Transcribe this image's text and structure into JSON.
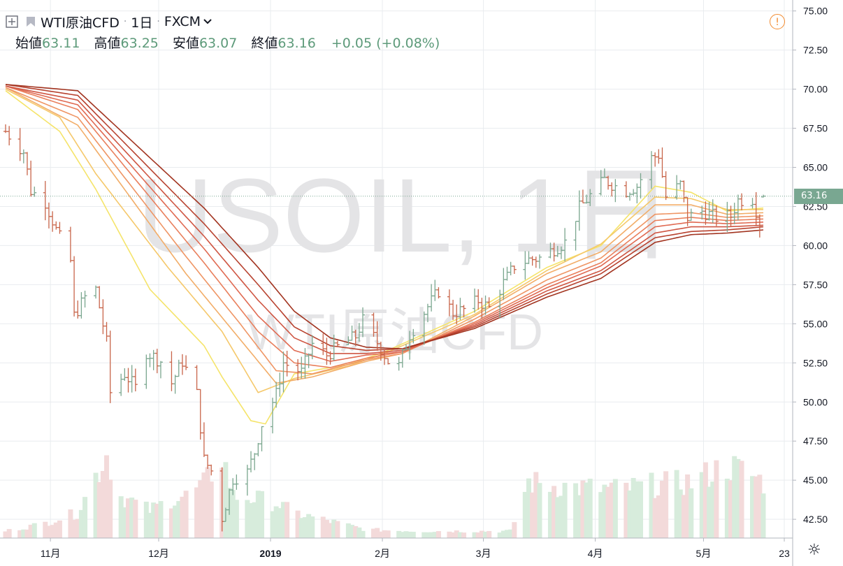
{
  "header": {
    "symbol": "WTI原油CFD",
    "interval": "1日",
    "exchange": "FXCM",
    "dot": "·"
  },
  "ohlc": {
    "open_label": "始値",
    "open": "63.11",
    "high_label": "高値",
    "high": "63.25",
    "low_label": "安値",
    "low": "63.07",
    "close_label": "終値",
    "close": "63.16",
    "change": "+0.05 (+0.08%)"
  },
  "watermark": {
    "main": "USOIL, 1日",
    "sub": "WTI原油CFD"
  },
  "current_price_label": "63.16",
  "alert_symbol": "!",
  "colors": {
    "up": "#7aa68e",
    "down": "#c8654a",
    "vol_up": "#d7ecdc",
    "vol_down": "#f3dada",
    "ribbon": [
      "#f5e46a",
      "#f5c86a",
      "#f2ad68",
      "#ef9564",
      "#e97f5c",
      "#e06a52",
      "#cf5643",
      "#b84330",
      "#a23420"
    ],
    "price_line": "#79a791",
    "grid": "#e9ecef"
  },
  "chart_data": {
    "type": "candlestick",
    "title": "USOIL, 1日",
    "y_axis": {
      "ylim": [
        41.3,
        75.7
      ],
      "ticks": [
        "75.00",
        "72.50",
        "70.00",
        "67.50",
        "65.00",
        "62.50",
        "60.00",
        "57.50",
        "55.00",
        "52.50",
        "50.00",
        "47.50",
        "45.00",
        "42.50"
      ]
    },
    "x_axis": {
      "range": [
        "2018-10-25",
        "2019-05-23"
      ],
      "ticks": [
        {
          "date": "2018-11-01",
          "label": "11月"
        },
        {
          "date": "2018-12-01",
          "label": "12月"
        },
        {
          "date": "2019-01-01",
          "label": "2019"
        },
        {
          "date": "2019-02-01",
          "label": "2月"
        },
        {
          "date": "2019-03-01",
          "label": "3月"
        },
        {
          "date": "2019-04-01",
          "label": "4月"
        },
        {
          "date": "2019-05-01",
          "label": "5月"
        },
        {
          "date": "2019-05-23",
          "label": "23"
        }
      ]
    },
    "close_anchors": [
      [
        "2018-10-25",
        67.3
      ],
      [
        "2018-10-30",
        66.0
      ],
      [
        "2018-11-01",
        63.5
      ],
      [
        "2018-11-05",
        62.8
      ],
      [
        "2018-11-08",
        61.0
      ],
      [
        "2018-11-12",
        59.0
      ],
      [
        "2018-11-13",
        55.5
      ],
      [
        "2018-11-16",
        56.7
      ],
      [
        "2018-11-19",
        57.2
      ],
      [
        "2018-11-22",
        53.8
      ],
      [
        "2018-11-23",
        50.6
      ],
      [
        "2018-11-27",
        51.8
      ],
      [
        "2018-11-30",
        50.9
      ],
      [
        "2018-12-03",
        53.2
      ],
      [
        "2018-12-07",
        52.6
      ],
      [
        "2018-12-10",
        51.2
      ],
      [
        "2018-12-13",
        52.6
      ],
      [
        "2018-12-17",
        50.5
      ],
      [
        "2018-12-19",
        46.3
      ],
      [
        "2018-12-21",
        45.6
      ],
      [
        "2018-12-24",
        42.6
      ],
      [
        "2018-12-27",
        45.1
      ],
      [
        "2018-12-31",
        45.5
      ],
      [
        "2019-01-02",
        46.8
      ],
      [
        "2019-01-04",
        48.6
      ],
      [
        "2019-01-08",
        50.5
      ],
      [
        "2019-01-10",
        52.5
      ],
      [
        "2019-01-15",
        51.9
      ],
      [
        "2019-01-18",
        53.7
      ],
      [
        "2019-01-22",
        53.0
      ],
      [
        "2019-01-25",
        53.5
      ],
      [
        "2019-01-30",
        54.2
      ],
      [
        "2019-02-01",
        55.2
      ],
      [
        "2019-02-05",
        53.8
      ],
      [
        "2019-02-08",
        52.6
      ],
      [
        "2019-02-11",
        52.3
      ],
      [
        "2019-02-14",
        54.3
      ],
      [
        "2019-02-19",
        56.1
      ],
      [
        "2019-02-22",
        57.1
      ],
      [
        "2019-02-26",
        55.7
      ],
      [
        "2019-03-01",
        55.9
      ],
      [
        "2019-03-05",
        56.5
      ],
      [
        "2019-03-08",
        56.0
      ],
      [
        "2019-03-12",
        57.6
      ],
      [
        "2019-03-15",
        58.7
      ],
      [
        "2019-03-19",
        59.1
      ],
      [
        "2019-03-22",
        59.2
      ],
      [
        "2019-03-26",
        59.8
      ],
      [
        "2019-03-29",
        60.2
      ],
      [
        "2019-04-02",
        62.4
      ],
      [
        "2019-04-05",
        63.2
      ],
      [
        "2019-04-09",
        64.2
      ],
      [
        "2019-04-12",
        63.8
      ],
      [
        "2019-04-15",
        63.5
      ],
      [
        "2019-04-18",
        63.8
      ],
      [
        "2019-04-22",
        65.6
      ],
      [
        "2019-04-24",
        65.8
      ],
      [
        "2019-04-26",
        63.1
      ],
      [
        "2019-04-30",
        63.9
      ],
      [
        "2019-05-02",
        61.8
      ],
      [
        "2019-05-06",
        62.2
      ],
      [
        "2019-05-10",
        61.8
      ],
      [
        "2019-05-14",
        61.9
      ],
      [
        "2019-05-16",
        62.9
      ],
      [
        "2019-05-20",
        63.0
      ],
      [
        "2019-05-22",
        61.5
      ],
      [
        "2019-05-23",
        63.16
      ]
    ],
    "ema_ribbon": {
      "series": [
        {
          "values": [
            [
              0,
              69.9
            ],
            [
              15,
              67.3
            ],
            [
              25,
              63.6
            ],
            [
              40,
              57.2
            ],
            [
              55,
              53.6
            ],
            [
              60,
              51.6
            ],
            [
              68,
              48.8
            ],
            [
              72,
              48.6
            ],
            [
              80,
              51.8
            ],
            [
              95,
              52.4
            ],
            [
              105,
              53.2
            ],
            [
              130,
              55.8
            ],
            [
              150,
              58.6
            ],
            [
              165,
              60.0
            ],
            [
              180,
              63.8
            ],
            [
              190,
              63.4
            ],
            [
              200,
              62.2
            ],
            [
              210,
              62.4
            ]
          ]
        },
        {
          "values": [
            [
              0,
              70.0
            ],
            [
              15,
              68.2
            ],
            [
              25,
              64.6
            ],
            [
              45,
              58.6
            ],
            [
              60,
              54.5
            ],
            [
              70,
              50.6
            ],
            [
              80,
              51.5
            ],
            [
              95,
              52.3
            ],
            [
              105,
              53.1
            ],
            [
              130,
              55.6
            ],
            [
              150,
              58.4
            ],
            [
              165,
              60.1
            ],
            [
              180,
              63.1
            ],
            [
              190,
              63.0
            ],
            [
              200,
              62.3
            ],
            [
              210,
              62.3
            ]
          ]
        },
        {
          "values": [
            [
              0,
              70.1
            ],
            [
              20,
              67.7
            ],
            [
              50,
              58.2
            ],
            [
              65,
              54.0
            ],
            [
              75,
              51.2
            ],
            [
              85,
              51.6
            ],
            [
              100,
              52.6
            ],
            [
              110,
              53.1
            ],
            [
              130,
              55.5
            ],
            [
              150,
              58.2
            ],
            [
              165,
              59.6
            ],
            [
              180,
              62.6
            ],
            [
              190,
              62.6
            ],
            [
              200,
              62.0
            ],
            [
              210,
              62.1
            ]
          ]
        },
        {
          "values": [
            [
              0,
              70.1
            ],
            [
              20,
              68.2
            ],
            [
              50,
              59.3
            ],
            [
              65,
              55.0
            ],
            [
              75,
              52.0
            ],
            [
              85,
              51.8
            ],
            [
              100,
              52.7
            ],
            [
              110,
              53.1
            ],
            [
              130,
              55.3
            ],
            [
              150,
              57.8
            ],
            [
              165,
              59.2
            ],
            [
              180,
              62.0
            ],
            [
              190,
              62.1
            ],
            [
              200,
              61.8
            ],
            [
              210,
              61.9
            ]
          ]
        },
        {
          "values": [
            [
              0,
              70.2
            ],
            [
              20,
              68.7
            ],
            [
              55,
              58.9
            ],
            [
              70,
              54.5
            ],
            [
              80,
              52.5
            ],
            [
              90,
              52.2
            ],
            [
              100,
              52.8
            ],
            [
              110,
              53.2
            ],
            [
              130,
              55.1
            ],
            [
              150,
              57.5
            ],
            [
              165,
              58.9
            ],
            [
              180,
              61.6
            ],
            [
              190,
              61.8
            ],
            [
              200,
              61.6
            ],
            [
              210,
              61.7
            ]
          ]
        },
        {
          "values": [
            [
              0,
              70.2
            ],
            [
              20,
              69.0
            ],
            [
              55,
              59.8
            ],
            [
              70,
              55.5
            ],
            [
              80,
              53.3
            ],
            [
              90,
              52.6
            ],
            [
              100,
              53.0
            ],
            [
              110,
              53.2
            ],
            [
              130,
              55.0
            ],
            [
              150,
              57.3
            ],
            [
              165,
              58.7
            ],
            [
              180,
              61.2
            ],
            [
              190,
              61.5
            ],
            [
              200,
              61.4
            ],
            [
              210,
              61.5
            ]
          ]
        },
        {
          "values": [
            [
              0,
              70.2
            ],
            [
              20,
              69.3
            ],
            [
              55,
              60.6
            ],
            [
              70,
              56.5
            ],
            [
              80,
              54.1
            ],
            [
              90,
              53.1
            ],
            [
              100,
              53.1
            ],
            [
              110,
              53.3
            ],
            [
              130,
              54.9
            ],
            [
              150,
              57.1
            ],
            [
              165,
              58.4
            ],
            [
              180,
              60.8
            ],
            [
              190,
              61.2
            ],
            [
              200,
              61.2
            ],
            [
              210,
              61.3
            ]
          ]
        },
        {
          "values": [
            [
              0,
              70.3
            ],
            [
              20,
              69.6
            ],
            [
              55,
              61.4
            ],
            [
              70,
              57.5
            ],
            [
              80,
              54.8
            ],
            [
              90,
              53.6
            ],
            [
              100,
              53.3
            ],
            [
              110,
              53.4
            ],
            [
              130,
              54.8
            ],
            [
              150,
              56.9
            ],
            [
              165,
              58.2
            ],
            [
              180,
              60.5
            ],
            [
              190,
              60.9
            ],
            [
              200,
              61.0
            ],
            [
              210,
              61.2
            ]
          ]
        },
        {
          "values": [
            [
              0,
              70.3
            ],
            [
              20,
              69.9
            ],
            [
              55,
              62.4
            ],
            [
              70,
              58.6
            ],
            [
              80,
              55.8
            ],
            [
              90,
              54.1
            ],
            [
              100,
              53.5
            ],
            [
              110,
              53.4
            ],
            [
              130,
              54.7
            ],
            [
              150,
              56.7
            ],
            [
              165,
              57.9
            ],
            [
              180,
              60.2
            ],
            [
              190,
              60.7
            ],
            [
              200,
              60.8
            ],
            [
              210,
              61.0
            ]
          ]
        }
      ],
      "x_unit": "days since 2018-10-25"
    },
    "volume": {
      "note": "relative volume level 0-1 per segment",
      "levels": [
        [
          0,
          0.05
        ],
        [
          10,
          0.1
        ],
        [
          20,
          0.18
        ],
        [
          28,
          0.6
        ],
        [
          32,
          0.3
        ],
        [
          40,
          0.2
        ],
        [
          46,
          0.28
        ],
        [
          50,
          0.3
        ],
        [
          55,
          0.38
        ],
        [
          60,
          0.6
        ],
        [
          63,
          0.3
        ],
        [
          70,
          0.28
        ],
        [
          75,
          0.25
        ],
        [
          80,
          0.18
        ],
        [
          90,
          0.12
        ],
        [
          100,
          0.06
        ],
        [
          115,
          0.05
        ],
        [
          140,
          0.05
        ],
        [
          145,
          0.4
        ],
        [
          150,
          0.38
        ],
        [
          160,
          0.36
        ],
        [
          170,
          0.35
        ],
        [
          180,
          0.38
        ],
        [
          190,
          0.4
        ],
        [
          200,
          0.52
        ],
        [
          207,
          0.45
        ],
        [
          210,
          0.4
        ]
      ]
    }
  }
}
